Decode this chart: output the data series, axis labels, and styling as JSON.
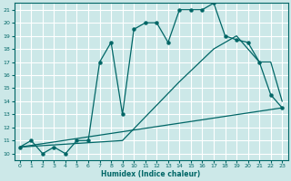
{
  "bg_color": "#cce8e8",
  "grid_color": "#ffffff",
  "line_color": "#006666",
  "xlabel": "Humidex (Indice chaleur)",
  "xlim": [
    -0.5,
    23.5
  ],
  "ylim": [
    9.5,
    21.5
  ],
  "yticks": [
    10,
    11,
    12,
    13,
    14,
    15,
    16,
    17,
    18,
    19,
    20,
    21
  ],
  "xticks": [
    0,
    1,
    2,
    3,
    4,
    5,
    6,
    7,
    8,
    9,
    10,
    11,
    12,
    13,
    14,
    15,
    16,
    17,
    18,
    19,
    20,
    21,
    22,
    23
  ],
  "curve1_x": [
    0,
    1,
    2,
    3,
    4,
    5,
    6,
    7,
    8,
    9,
    10,
    11,
    12,
    13,
    14,
    15,
    16,
    17,
    18,
    19,
    20,
    21,
    22,
    23
  ],
  "curve1_y": [
    10.5,
    11.0,
    10.0,
    10.5,
    10.0,
    11.0,
    11.0,
    17.0,
    18.5,
    13.0,
    19.5,
    20.0,
    20.0,
    18.5,
    21.0,
    21.0,
    21.0,
    21.5,
    19.0,
    18.7,
    18.5,
    17.0,
    14.5,
    13.5
  ],
  "curve2_x": [
    0,
    9,
    14,
    17,
    19,
    20,
    21,
    22,
    23
  ],
  "curve2_y": [
    10.5,
    11.0,
    15.5,
    18.0,
    19.0,
    18.0,
    17.0,
    17.0,
    14.0
  ],
  "curve3_x": [
    0,
    23
  ],
  "curve3_y": [
    10.5,
    13.5
  ]
}
